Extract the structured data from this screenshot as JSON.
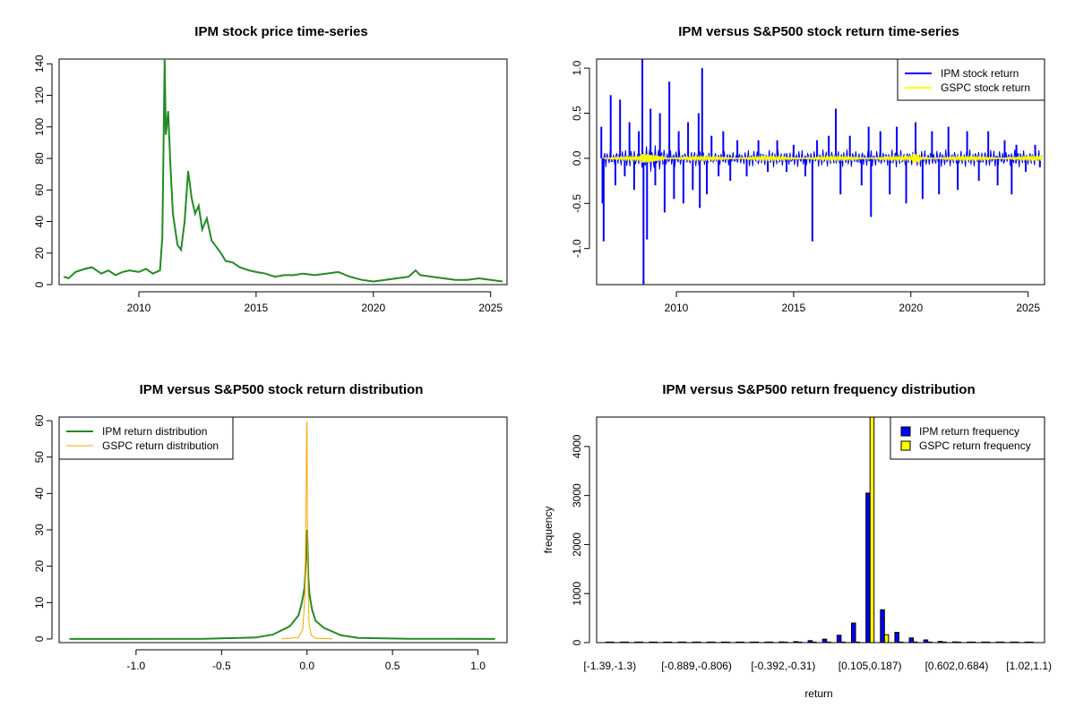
{
  "chart_data": [
    {
      "type": "line",
      "title": "IPM stock price time-series",
      "xlabel": "",
      "ylabel": "",
      "xlim": [
        2006.6,
        2025.7
      ],
      "ylim": [
        0,
        143
      ],
      "x_ticks": [
        "2010",
        "2015",
        "2020",
        "2025"
      ],
      "y_ticks": [
        "0",
        "20",
        "40",
        "60",
        "80",
        "100",
        "120",
        "140"
      ],
      "grid": false,
      "series": [
        {
          "color": "#228B22",
          "x": [
            2006.8,
            2007.0,
            2007.3,
            2007.7,
            2008.0,
            2008.4,
            2008.7,
            2009.0,
            2009.3,
            2009.6,
            2010.0,
            2010.3,
            2010.6,
            2010.9,
            2011.0,
            2011.05,
            2011.1,
            2011.15,
            2011.25,
            2011.35,
            2011.45,
            2011.55,
            2011.65,
            2011.8,
            2011.95,
            2012.1,
            2012.25,
            2012.4,
            2012.55,
            2012.7,
            2012.9,
            2013.1,
            2013.3,
            2013.5,
            2013.7,
            2014.0,
            2014.3,
            2014.7,
            2015.0,
            2015.4,
            2015.8,
            2016.2,
            2016.6,
            2017.0,
            2017.5,
            2018.0,
            2018.5,
            2019.0,
            2019.5,
            2020.0,
            2020.5,
            2021.0,
            2021.5,
            2021.8,
            2022.0,
            2022.5,
            2023.0,
            2023.5,
            2024.0,
            2024.5,
            2025.0,
            2025.5
          ],
          "y": [
            5,
            4,
            8,
            10,
            11,
            7,
            9,
            6,
            8,
            9,
            8,
            10,
            7,
            9,
            30,
            85,
            143,
            95,
            110,
            75,
            45,
            35,
            25,
            22,
            40,
            72,
            55,
            45,
            50,
            35,
            42,
            28,
            24,
            20,
            15,
            14,
            11,
            9,
            8,
            7,
            5,
            6,
            6,
            7,
            6,
            7,
            8,
            5,
            3,
            2,
            3,
            4,
            5,
            9,
            6,
            5,
            4,
            3,
            3,
            4,
            3,
            2
          ]
        }
      ]
    },
    {
      "type": "line",
      "title": "IPM versus S&P500 stock return time-series",
      "xlabel": "",
      "ylabel": "",
      "xlim": [
        2006.6,
        2025.7
      ],
      "ylim": [
        -1.4,
        1.1
      ],
      "x_ticks": [
        "2010",
        "2015",
        "2020",
        "2025"
      ],
      "y_ticks": [
        "-1.0",
        "-0.5",
        "0.0",
        "0.5",
        "1.0"
      ],
      "grid": false,
      "legend_position": "top-right",
      "series": [
        {
          "name": "IPM stock return",
          "color": "#0000FF"
        },
        {
          "name": "GSPC stock return",
          "color": "#FFFF00"
        }
      ],
      "spikes": [
        {
          "x": 2006.8,
          "y": 0.35
        },
        {
          "x": 2006.85,
          "y": -0.5
        },
        {
          "x": 2006.9,
          "y": -0.92
        },
        {
          "x": 2007.2,
          "y": 0.7
        },
        {
          "x": 2007.4,
          "y": -0.3
        },
        {
          "x": 2007.6,
          "y": 0.65
        },
        {
          "x": 2007.8,
          "y": -0.2
        },
        {
          "x": 2008.0,
          "y": 0.4
        },
        {
          "x": 2008.2,
          "y": -0.35
        },
        {
          "x": 2008.4,
          "y": 0.3
        },
        {
          "x": 2008.55,
          "y": 1.1
        },
        {
          "x": 2008.6,
          "y": -1.4
        },
        {
          "x": 2008.75,
          "y": -0.9
        },
        {
          "x": 2008.9,
          "y": 0.55
        },
        {
          "x": 2009.1,
          "y": -0.3
        },
        {
          "x": 2009.3,
          "y": 0.5
        },
        {
          "x": 2009.5,
          "y": -0.6
        },
        {
          "x": 2009.7,
          "y": 0.85
        },
        {
          "x": 2009.9,
          "y": -0.45
        },
        {
          "x": 2010.1,
          "y": 0.3
        },
        {
          "x": 2010.3,
          "y": -0.5
        },
        {
          "x": 2010.5,
          "y": 0.4
        },
        {
          "x": 2010.7,
          "y": -0.35
        },
        {
          "x": 2010.95,
          "y": 0.5
        },
        {
          "x": 2011.0,
          "y": -0.55
        },
        {
          "x": 2011.1,
          "y": 1.0
        },
        {
          "x": 2011.3,
          "y": -0.4
        },
        {
          "x": 2011.5,
          "y": 0.25
        },
        {
          "x": 2011.8,
          "y": -0.2
        },
        {
          "x": 2012.0,
          "y": 0.3
        },
        {
          "x": 2012.3,
          "y": -0.25
        },
        {
          "x": 2012.6,
          "y": 0.2
        },
        {
          "x": 2013.0,
          "y": -0.2
        },
        {
          "x": 2013.5,
          "y": 0.2
        },
        {
          "x": 2013.9,
          "y": -0.15
        },
        {
          "x": 2014.3,
          "y": 0.2
        },
        {
          "x": 2014.7,
          "y": -0.15
        },
        {
          "x": 2015.0,
          "y": 0.15
        },
        {
          "x": 2015.5,
          "y": -0.2
        },
        {
          "x": 2015.8,
          "y": -0.92
        },
        {
          "x": 2016.0,
          "y": 0.2
        },
        {
          "x": 2016.5,
          "y": 0.25
        },
        {
          "x": 2016.8,
          "y": 0.55
        },
        {
          "x": 2017.0,
          "y": -0.4
        },
        {
          "x": 2017.4,
          "y": 0.25
        },
        {
          "x": 2017.9,
          "y": -0.3
        },
        {
          "x": 2018.2,
          "y": 0.35
        },
        {
          "x": 2018.3,
          "y": -0.65
        },
        {
          "x": 2018.7,
          "y": 0.3
        },
        {
          "x": 2019.1,
          "y": -0.4
        },
        {
          "x": 2019.4,
          "y": 0.35
        },
        {
          "x": 2019.8,
          "y": -0.5
        },
        {
          "x": 2020.2,
          "y": 0.4
        },
        {
          "x": 2020.5,
          "y": -0.45
        },
        {
          "x": 2020.9,
          "y": 0.3
        },
        {
          "x": 2021.2,
          "y": -0.4
        },
        {
          "x": 2021.6,
          "y": 0.35
        },
        {
          "x": 2022.0,
          "y": -0.35
        },
        {
          "x": 2022.4,
          "y": 0.3
        },
        {
          "x": 2022.9,
          "y": -0.25
        },
        {
          "x": 2023.3,
          "y": 0.3
        },
        {
          "x": 2023.7,
          "y": -0.3
        },
        {
          "x": 2024.0,
          "y": 0.2
        },
        {
          "x": 2024.3,
          "y": -0.4
        },
        {
          "x": 2024.5,
          "y": 0.15
        },
        {
          "x": 2024.9,
          "y": -0.15
        },
        {
          "x": 2025.3,
          "y": 0.15
        },
        {
          "x": 2025.5,
          "y": -0.1
        }
      ]
    },
    {
      "type": "line",
      "title": "IPM versus S&P500 stock return distribution",
      "xlabel": "",
      "ylabel": "",
      "xlim": [
        -1.45,
        1.17
      ],
      "ylim": [
        -1,
        61
      ],
      "x_ticks": [
        "-1.0",
        "-0.5",
        "0.0",
        "0.5",
        "1.0"
      ],
      "y_ticks": [
        "0",
        "10",
        "20",
        "30",
        "40",
        "50",
        "60"
      ],
      "grid": false,
      "legend_position": "top-left",
      "series": [
        {
          "name": "IPM return distribution",
          "color": "#228B22",
          "x": [
            -1.39,
            -0.6,
            -0.3,
            -0.2,
            -0.1,
            -0.05,
            -0.03,
            -0.015,
            -0.008,
            -0.003,
            0.0,
            0.003,
            0.008,
            0.015,
            0.03,
            0.05,
            0.1,
            0.2,
            0.3,
            0.6,
            1.1
          ],
          "y": [
            0,
            0.05,
            0.4,
            1.2,
            3.5,
            6.5,
            10,
            14,
            20,
            24,
            30,
            27,
            17,
            12,
            8,
            5,
            3,
            1,
            0.3,
            0.05,
            0
          ]
        },
        {
          "name": "GSPC return distribution",
          "color": "#FFA500",
          "x": [
            -0.15,
            -0.05,
            -0.025,
            -0.012,
            -0.006,
            -0.002,
            0.0,
            0.002,
            0.006,
            0.012,
            0.025,
            0.05,
            0.15
          ],
          "y": [
            0,
            0.4,
            2.5,
            12,
            35,
            58,
            60,
            35,
            14,
            4,
            1,
            0.2,
            0
          ]
        }
      ]
    },
    {
      "type": "bar",
      "title": "IPM versus S&P500 return frequency distribution",
      "xlabel": "return",
      "ylabel": "frequency",
      "ylim": [
        0,
        4600
      ],
      "y_ticks": [
        "0",
        "1000",
        "2000",
        "3000",
        "4000"
      ],
      "grid": false,
      "legend_position": "top-right",
      "x_tick_labels": [
        "[-1.39,-1.3)",
        "[-0.889,-0.806)",
        "[-0.392,-0.31)",
        "[0.105,0.187)",
        "[0.602,0.684)",
        "[1.02,1.1)"
      ],
      "x_tick_label_bins": [
        0,
        6,
        12,
        18,
        24,
        29
      ],
      "categories_count": 30,
      "series": [
        {
          "name": "IPM return frequency",
          "color": "#0000FF",
          "values": [
            2,
            1,
            1,
            2,
            1,
            2,
            3,
            3,
            4,
            5,
            8,
            10,
            15,
            20,
            40,
            70,
            150,
            400,
            3050,
            670,
            210,
            95,
            55,
            25,
            15,
            8,
            5,
            3,
            2,
            2
          ]
        },
        {
          "name": "GSPC return frequency",
          "color": "#FFFF00",
          "values": [
            0,
            0,
            0,
            0,
            0,
            0,
            0,
            0,
            0,
            0,
            0,
            0,
            0,
            0,
            0,
            0,
            0,
            0,
            4600,
            160,
            0,
            0,
            0,
            0,
            0,
            0,
            0,
            0,
            0,
            0
          ]
        }
      ]
    }
  ]
}
